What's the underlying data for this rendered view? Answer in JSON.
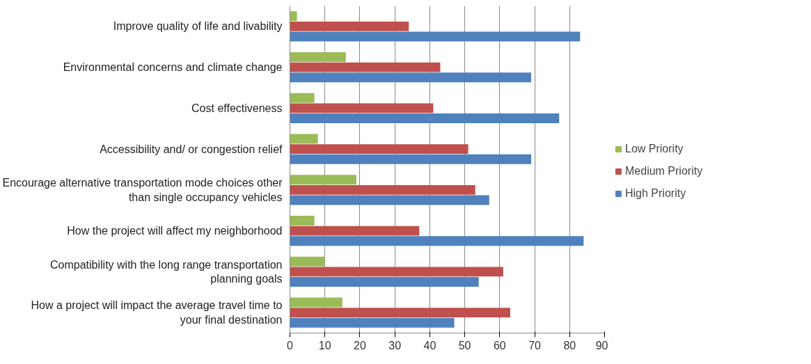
{
  "chart_data": {
    "type": "bar",
    "orientation": "horizontal",
    "categories": [
      "Improve quality of life and livability",
      "Environmental concerns and climate change",
      "Cost effectiveness",
      "Accessibility and/ or congestion relief",
      "Encourage alternative transportation mode choices other than single occupancy vehicles",
      "How the project will affect my neighborhood",
      "Compatibility with the long range transportation planning goals",
      "How a project will impact the average travel time to your final destination"
    ],
    "series": [
      {
        "name": "Low Priority",
        "color": "#9bbb59",
        "values": [
          2,
          16,
          7,
          8,
          19,
          7,
          10,
          15
        ]
      },
      {
        "name": "Medium Priority",
        "color": "#c0504d",
        "values": [
          34,
          43,
          41,
          51,
          53,
          37,
          61,
          63
        ]
      },
      {
        "name": "High Priority",
        "color": "#4f81bd",
        "values": [
          83,
          69,
          77,
          69,
          57,
          84,
          54,
          47
        ]
      }
    ],
    "xlim": [
      0,
      90
    ],
    "xticks": [
      0,
      10,
      20,
      30,
      40,
      50,
      60,
      70,
      80,
      90
    ],
    "grid": "x",
    "legend": "right"
  }
}
